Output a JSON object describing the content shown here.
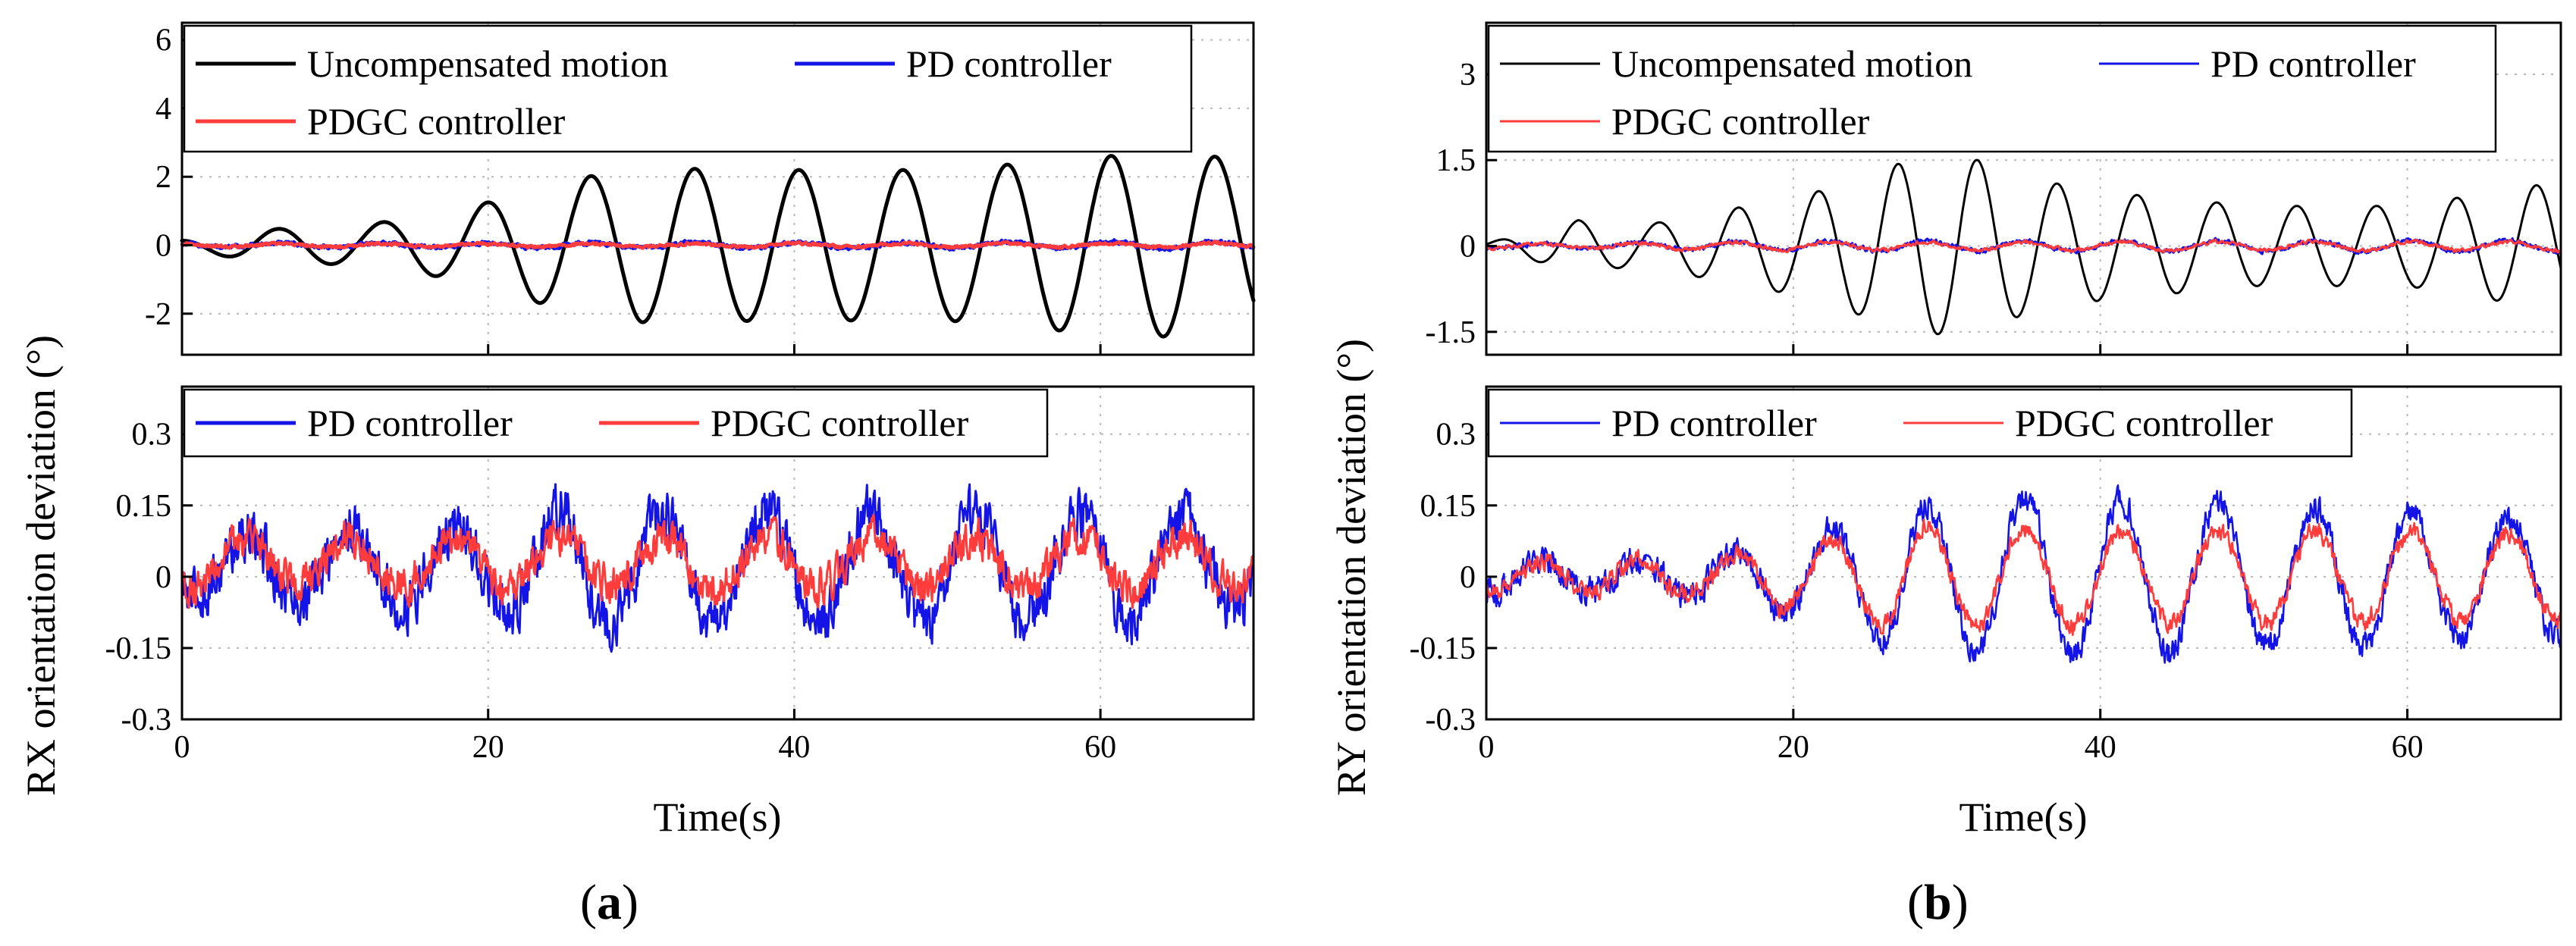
{
  "colors": {
    "uncompensated": "#000000",
    "pd": "#1414e6",
    "pdgc": "#ff3c3c"
  },
  "chart_data": [
    {
      "type": "line",
      "panel": "a-top",
      "ylabel": "RX orientation deviation (°)",
      "xlim": [
        0,
        70
      ],
      "ylim": [
        -3.2,
        6.5
      ],
      "xticks": [
        0,
        20,
        40,
        60
      ],
      "yticks": [
        -2,
        0,
        2,
        4,
        6
      ],
      "legend": [
        "Uncompensated motion",
        "PD controller",
        "PDGC controller"
      ],
      "series": [
        {
          "name": "Uncompensated motion",
          "color": "#000000",
          "shape": {
            "period": 6.8,
            "phase": 4.6,
            "amp": [
              [
                0,
                0.15
              ],
              [
                5,
                0.45
              ],
              [
                12,
                0.6
              ],
              [
                18,
                1.0
              ],
              [
                25,
                1.9
              ],
              [
                30,
                2.25
              ],
              [
                40,
                2.2
              ],
              [
                50,
                2.2
              ],
              [
                60,
                2.6
              ],
              [
                66,
                2.7
              ],
              [
                70,
                2.4
              ]
            ]
          }
        },
        {
          "name": "PD controller",
          "color": "#1414e6",
          "shape": {
            "period": 6.8,
            "phase": 4.6,
            "amp": [
              [
                0,
                0.05
              ],
              [
                70,
                0.1
              ]
            ],
            "noise": 0.09
          }
        },
        {
          "name": "PDGC controller",
          "color": "#ff3c3c",
          "shape": {
            "period": 6.8,
            "phase": 4.6,
            "amp": [
              [
                0,
                0.04
              ],
              [
                70,
                0.06
              ]
            ],
            "noise": 0.06
          }
        }
      ]
    },
    {
      "type": "line",
      "panel": "a-bottom",
      "xlabel": "Time(s)",
      "xlim": [
        0,
        70
      ],
      "ylim": [
        -0.3,
        0.4
      ],
      "xticks": [
        0,
        20,
        40,
        60
      ],
      "yticks": [
        -0.3,
        -0.15,
        0,
        0.15,
        0.3
      ],
      "ytick_labels": [
        "-0.3",
        "-0.15",
        "0",
        "0.15",
        "0.3"
      ],
      "legend": [
        "PD controller",
        "PDGC controller"
      ],
      "series": [
        {
          "name": "PD controller",
          "color": "#1414e6",
          "shape": {
            "period": 6.8,
            "phase": 2.5,
            "amp": [
              [
                0,
                0.06
              ],
              [
                20,
                0.09
              ],
              [
                24,
                0.12
              ],
              [
                60,
                0.11
              ],
              [
                70,
                0.08
              ]
            ],
            "offset": 0.02,
            "noise": 0.085
          }
        },
        {
          "name": "PDGC controller",
          "color": "#ff3c3c",
          "shape": {
            "period": 6.8,
            "phase": 2.5,
            "amp": [
              [
                0,
                0.045
              ],
              [
                70,
                0.055
              ]
            ],
            "offset": 0.03,
            "noise": 0.06
          }
        }
      ]
    },
    {
      "type": "line",
      "panel": "b-top",
      "ylabel": "RY orientation deviation (°)",
      "xlim": [
        0,
        70
      ],
      "ylim": [
        -1.9,
        3.9
      ],
      "xticks": [
        0,
        20,
        40,
        60
      ],
      "yticks": [
        -1.5,
        0,
        1.5,
        3
      ],
      "ytick_labels": [
        "-1.5",
        "0",
        "1.5",
        "3"
      ],
      "legend": [
        "Uncompensated motion",
        "PD controller",
        "PDGC controller"
      ],
      "series": [
        {
          "name": "Uncompensated motion",
          "color": "#000000",
          "shape": {
            "period": 5.2,
            "phase": 4.7,
            "amp": [
              [
                0,
                0.05
              ],
              [
                6,
                0.45
              ],
              [
                10,
                0.35
              ],
              [
                16,
                0.65
              ],
              [
                21,
                0.9
              ],
              [
                27,
                1.45
              ],
              [
                31,
                1.6
              ],
              [
                35,
                1.2
              ],
              [
                40,
                0.95
              ],
              [
                50,
                0.7
              ],
              [
                60,
                0.7
              ],
              [
                68,
                1.05
              ],
              [
                70,
                1.1
              ]
            ]
          }
        },
        {
          "name": "PD controller",
          "color": "#1414e6",
          "shape": {
            "period": 6.3,
            "phase": 2.0,
            "amp": [
              [
                0,
                0.03
              ],
              [
                20,
                0.08
              ],
              [
                70,
                0.1
              ]
            ],
            "noise": 0.06
          }
        },
        {
          "name": "PDGC controller",
          "color": "#ff3c3c",
          "shape": {
            "period": 6.3,
            "phase": 2.0,
            "amp": [
              [
                0,
                0.03
              ],
              [
                20,
                0.07
              ],
              [
                70,
                0.08
              ]
            ],
            "noise": 0.05
          }
        }
      ]
    },
    {
      "type": "line",
      "panel": "b-bottom",
      "xlabel": "Time(s)",
      "xlim": [
        0,
        70
      ],
      "ylim": [
        -0.3,
        0.4
      ],
      "xticks": [
        0,
        20,
        40,
        60
      ],
      "yticks": [
        -0.3,
        -0.15,
        0,
        0.15,
        0.3
      ],
      "ytick_labels": [
        "-0.3",
        "-0.15",
        "0",
        "0.15",
        "0.3"
      ],
      "legend": [
        "PD controller",
        "PDGC controller"
      ],
      "series": [
        {
          "name": "PD controller",
          "color": "#1414e6",
          "shape": {
            "period": 6.3,
            "phase": 2.0,
            "amp": [
              [
                0,
                0.03
              ],
              [
                15,
                0.04
              ],
              [
                20,
                0.08
              ],
              [
                27,
                0.15
              ],
              [
                35,
                0.17
              ],
              [
                55,
                0.15
              ],
              [
                70,
                0.12
              ]
            ],
            "noise": 0.045
          }
        },
        {
          "name": "PDGC controller",
          "color": "#ff3c3c",
          "shape": {
            "period": 6.3,
            "phase": 2.0,
            "amp": [
              [
                0,
                0.03
              ],
              [
                15,
                0.04
              ],
              [
                20,
                0.07
              ],
              [
                27,
                0.11
              ],
              [
                40,
                0.1
              ],
              [
                70,
                0.09
              ]
            ],
            "noise": 0.03
          }
        }
      ]
    }
  ],
  "labels": {
    "panel_a": "(a)",
    "panel_b": "(b)",
    "time_axis": "Time(s)",
    "rx_axis": "RX orientation deviation (°)",
    "ry_axis": "RY orientation deviation (°)"
  }
}
